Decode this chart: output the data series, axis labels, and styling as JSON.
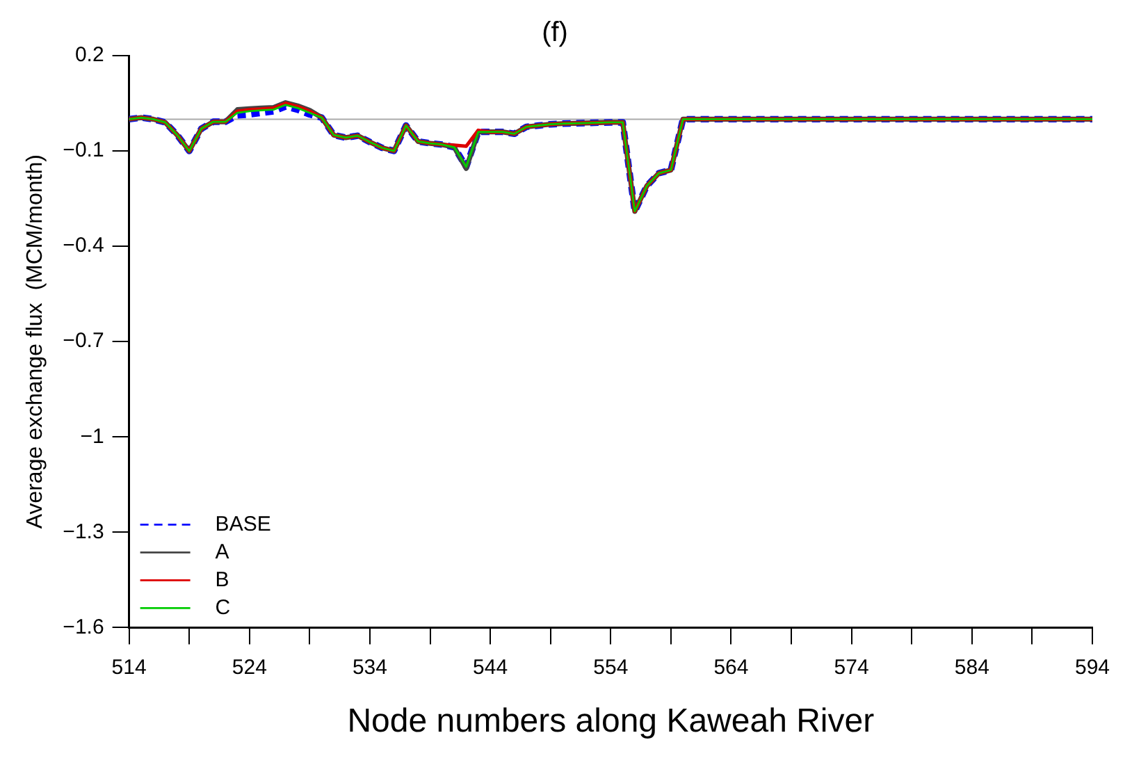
{
  "chart_data": {
    "type": "line",
    "title": "(f)",
    "xlabel": "Node numbers along Kaweah River",
    "ylabel": "Average exchange flux  (MCM/month)",
    "x": [
      514,
      515,
      516,
      517,
      518,
      519,
      520,
      521,
      522,
      523,
      524,
      525,
      526,
      527,
      528,
      529,
      530,
      531,
      532,
      533,
      534,
      535,
      536,
      537,
      538,
      539,
      540,
      541,
      542,
      543,
      544,
      545,
      546,
      547,
      548,
      549,
      550,
      551,
      552,
      553,
      554,
      555,
      556,
      557,
      558,
      559,
      560,
      594
    ],
    "series": [
      {
        "name": "BASE",
        "color": "#0000ff",
        "line_style": "dashed",
        "values": [
          0,
          0.005,
          0,
          -0.01,
          -0.05,
          -0.1,
          -0.03,
          -0.008,
          -0.008,
          0.012,
          0.015,
          0.02,
          0.025,
          0.04,
          0.03,
          0.015,
          0.005,
          -0.05,
          -0.058,
          -0.052,
          -0.072,
          -0.09,
          -0.1,
          -0.02,
          -0.07,
          -0.076,
          -0.08,
          -0.088,
          -0.15,
          -0.04,
          -0.04,
          -0.04,
          -0.046,
          -0.024,
          -0.02,
          -0.016,
          -0.014,
          -0.013,
          -0.012,
          -0.011,
          -0.01,
          -0.01,
          -0.29,
          -0.21,
          -0.17,
          -0.16,
          0,
          0
        ]
      },
      {
        "name": "A",
        "color": "#444444",
        "line_style": "solid",
        "values": [
          0,
          0.005,
          0,
          -0.01,
          -0.05,
          -0.1,
          -0.03,
          -0.008,
          -0.008,
          0.03,
          0.033,
          0.035,
          0.037,
          0.052,
          0.042,
          0.028,
          0.005,
          -0.05,
          -0.058,
          -0.052,
          -0.072,
          -0.09,
          -0.1,
          -0.02,
          -0.07,
          -0.076,
          -0.08,
          -0.088,
          -0.155,
          -0.04,
          -0.04,
          -0.04,
          -0.046,
          -0.024,
          -0.02,
          -0.016,
          -0.014,
          -0.013,
          -0.012,
          -0.011,
          -0.01,
          -0.01,
          -0.29,
          -0.21,
          -0.17,
          -0.16,
          0,
          0
        ]
      },
      {
        "name": "B",
        "color": "#dd0000",
        "line_style": "solid",
        "values": [
          0,
          0.005,
          0,
          -0.01,
          -0.05,
          -0.1,
          -0.03,
          -0.008,
          -0.008,
          0.025,
          0.03,
          0.032,
          0.035,
          0.05,
          0.04,
          0.025,
          0.005,
          -0.05,
          -0.058,
          -0.052,
          -0.072,
          -0.09,
          -0.1,
          -0.02,
          -0.07,
          -0.076,
          -0.08,
          -0.082,
          -0.085,
          -0.035,
          -0.04,
          -0.04,
          -0.046,
          -0.024,
          -0.02,
          -0.016,
          -0.014,
          -0.013,
          -0.012,
          -0.011,
          -0.01,
          -0.01,
          -0.29,
          -0.21,
          -0.17,
          -0.16,
          0,
          0
        ]
      },
      {
        "name": "C",
        "color": "#00cc00",
        "line_style": "solid",
        "values": [
          0,
          0.005,
          0,
          -0.01,
          -0.05,
          -0.1,
          -0.03,
          -0.008,
          -0.008,
          0.02,
          0.025,
          0.028,
          0.03,
          0.045,
          0.035,
          0.02,
          0.005,
          -0.05,
          -0.058,
          -0.052,
          -0.072,
          -0.09,
          -0.1,
          -0.02,
          -0.07,
          -0.076,
          -0.08,
          -0.088,
          -0.15,
          -0.04,
          -0.04,
          -0.04,
          -0.046,
          -0.024,
          -0.02,
          -0.016,
          -0.014,
          -0.013,
          -0.012,
          -0.011,
          -0.01,
          -0.01,
          -0.29,
          -0.21,
          -0.17,
          -0.16,
          0,
          0
        ]
      }
    ],
    "xlim": [
      514,
      594
    ],
    "xticks": [
      514,
      {
        "value": 519,
        "label": null
      },
      524,
      {
        "value": 529,
        "label": null
      },
      534,
      {
        "value": 539,
        "label": null
      },
      544,
      {
        "value": 549,
        "label": null
      },
      554,
      {
        "value": 559,
        "label": null
      },
      564,
      {
        "value": 569,
        "label": null
      },
      574,
      {
        "value": 579,
        "label": null
      },
      584,
      {
        "value": 589,
        "label": null
      },
      594
    ],
    "ylim": [
      -1.6,
      0.2
    ],
    "yticks": [
      0.2,
      -0.1,
      -0.4,
      -0.7,
      -1,
      -1.3,
      -1.6
    ],
    "ref_lines": [
      {
        "axis": "y",
        "value": 0,
        "color": "#aaaaaa"
      }
    ],
    "grid": false,
    "legend": "bottom left",
    "marker": "none"
  }
}
